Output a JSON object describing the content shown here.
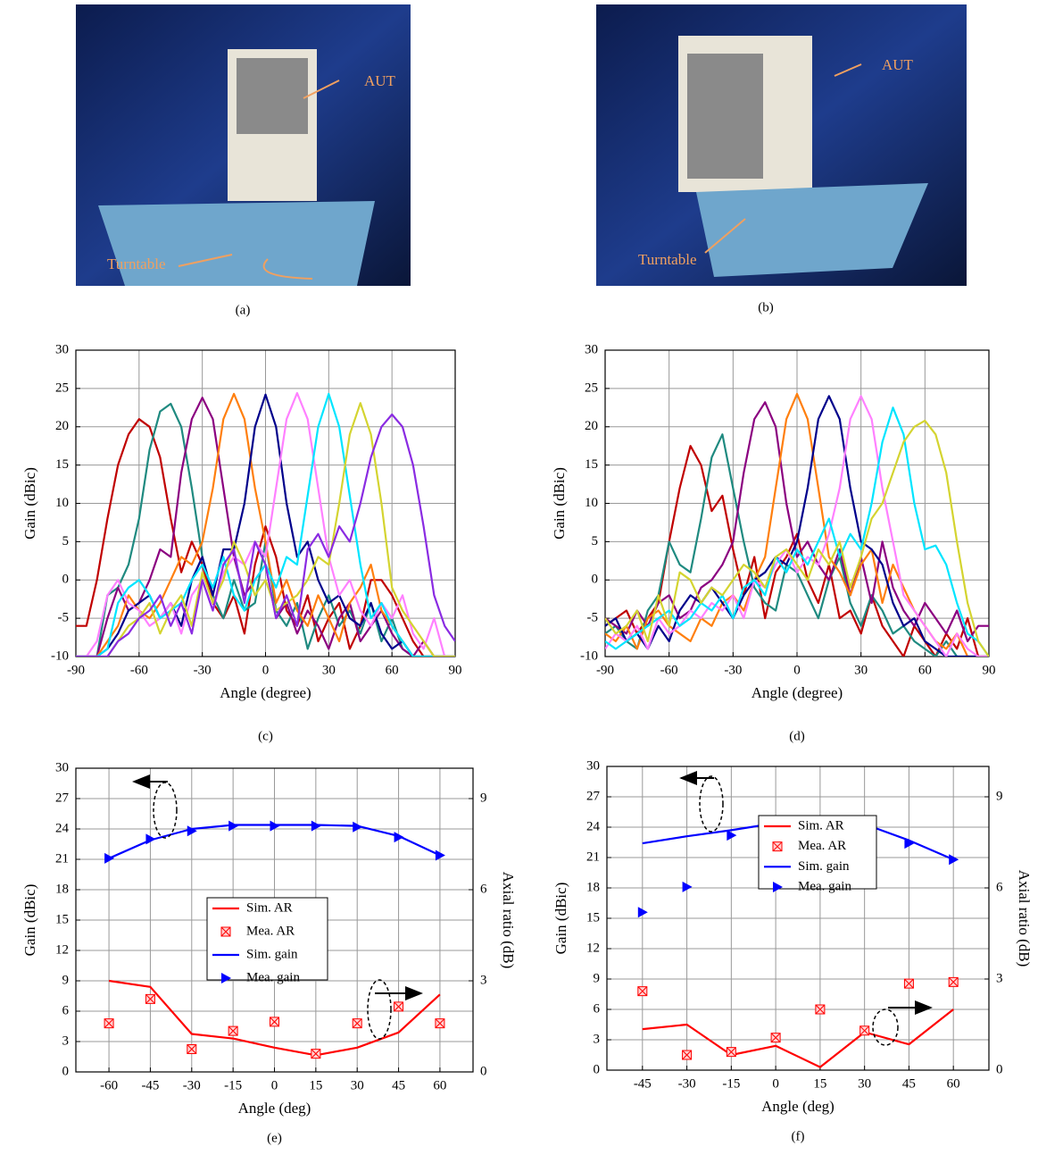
{
  "photos": [
    {
      "labels": [
        "AUT",
        "Turntable"
      ],
      "caption": "(a)"
    },
    {
      "labels": [
        "AUT",
        "Turntable"
      ],
      "caption": "(b)"
    }
  ],
  "chart_data": [
    {
      "type": "line",
      "caption": "(c)",
      "xlabel": "Angle (degree)",
      "ylabel": "Gain (dBic)",
      "xlim": [
        -90,
        90
      ],
      "xticks": [
        -90,
        -60,
        -30,
        0,
        30,
        60,
        90
      ],
      "ylim": [
        -10,
        30
      ],
      "yticks": [
        -10,
        -5,
        0,
        5,
        10,
        15,
        20,
        25,
        30
      ],
      "grid": true,
      "x": [
        -90,
        -85,
        -80,
        -75,
        -70,
        -65,
        -60,
        -55,
        -50,
        -45,
        -40,
        -35,
        -30,
        -25,
        -20,
        -15,
        -10,
        -5,
        0,
        5,
        10,
        15,
        20,
        25,
        30,
        35,
        40,
        45,
        50,
        55,
        60,
        65,
        70,
        75,
        80,
        85,
        90
      ],
      "series": [
        {
          "color": "#c00000",
          "values": [
            -6,
            -6,
            0,
            8,
            15,
            19,
            21,
            20,
            16,
            8,
            1,
            5,
            2,
            -3,
            -5,
            -2,
            -7,
            2,
            7,
            3,
            -4,
            -6,
            -2,
            -8,
            -5,
            -3,
            -9,
            -6,
            0,
            0,
            -2,
            -5,
            -8,
            -10,
            -10,
            -10,
            -10
          ]
        },
        {
          "color": "#1f8a80",
          "values": [
            -10,
            -10,
            -10,
            -2,
            -1,
            2,
            8,
            17,
            22,
            23,
            20,
            12,
            3,
            -2,
            -5,
            0,
            -4,
            -3,
            5,
            -4,
            -6,
            -3,
            -9,
            -5,
            -2,
            -6,
            -4,
            -7,
            -3,
            -8,
            -5,
            -9,
            -10,
            -10,
            -10,
            -10,
            -10
          ]
        },
        {
          "color": "#8b0080",
          "values": [
            -10,
            -10,
            -10,
            -5,
            -1,
            -4,
            -3,
            0,
            4,
            3,
            14,
            21,
            23.8,
            21,
            12,
            3,
            -2,
            0,
            2,
            -5,
            -3,
            -7,
            -4,
            -6,
            -9,
            -5,
            -3,
            -8,
            -6,
            -4,
            -7,
            -9,
            -10,
            -8,
            -10,
            -10,
            -10
          ]
        },
        {
          "color": "#ff7f0e",
          "values": [
            -10,
            -10,
            -10,
            -8,
            -6,
            -2,
            -4,
            -5,
            -3,
            0,
            3,
            2,
            5,
            12,
            21,
            24.3,
            21,
            12,
            5,
            -3,
            0,
            -4,
            -6,
            -2,
            -5,
            -8,
            -3,
            -1,
            2,
            -4,
            -6,
            -8,
            -10,
            -10,
            -10,
            -10,
            -10
          ]
        },
        {
          "color": "#00008b",
          "values": [
            -10,
            -10,
            -10,
            -9,
            -7,
            -4,
            -3,
            -2,
            -5,
            -3,
            -6,
            0,
            3,
            -2,
            4,
            4,
            10,
            20,
            24.2,
            20,
            10,
            3,
            5,
            0,
            -3,
            -2,
            -5,
            -6,
            -3,
            -7,
            -9,
            -8,
            -10,
            -10,
            -10,
            -10,
            -10
          ]
        },
        {
          "color": "#ff80ff",
          "values": [
            -10,
            -10,
            -8,
            -2,
            0,
            -3,
            -4,
            -6,
            -5,
            -3,
            -7,
            -2,
            0,
            -4,
            1,
            3,
            2,
            5,
            3,
            12,
            21,
            24.4,
            21,
            12,
            3,
            -2,
            0,
            -4,
            -6,
            -3,
            -5,
            -2,
            -7,
            -9,
            -5,
            -10,
            -10
          ]
        },
        {
          "color": "#00e5ff",
          "values": [
            -10,
            -10,
            -10,
            -9,
            -3,
            -1,
            0,
            -2,
            -5,
            -4,
            -3,
            0,
            2,
            -1,
            3,
            -2,
            -4,
            0,
            2,
            -1,
            3,
            2,
            11,
            20,
            24.3,
            20,
            11,
            2,
            -5,
            -3,
            -6,
            -8,
            -10,
            -10,
            -10,
            -10,
            -10
          ]
        },
        {
          "color": "#d4d430",
          "values": [
            -10,
            -10,
            -10,
            -10,
            -8,
            -6,
            -5,
            -3,
            -7,
            -4,
            -2,
            -6,
            1,
            -3,
            0,
            5,
            2,
            -2,
            0,
            -4,
            -3,
            -2,
            0,
            3,
            2,
            10,
            19,
            23.1,
            19,
            10,
            -1,
            -4,
            -6,
            -8,
            -10,
            -10,
            -10
          ]
        },
        {
          "color": "#8a2be2",
          "values": [
            -10,
            -10,
            -10,
            -10,
            -8,
            -7,
            -5,
            -4,
            -2,
            -6,
            -3,
            -7,
            0,
            -4,
            2,
            4,
            -3,
            5,
            2,
            -5,
            -2,
            -6,
            4,
            6,
            3,
            7,
            5,
            10,
            16,
            20,
            21.6,
            20,
            15,
            7,
            -2,
            -6,
            -8
          ]
        }
      ]
    },
    {
      "type": "line",
      "caption": "(d)",
      "xlabel": "Angle (degree)",
      "ylabel": "Gain (dBic)",
      "xlim": [
        -90,
        90
      ],
      "xticks": [
        -90,
        -60,
        -30,
        0,
        30,
        60,
        90
      ],
      "ylim": [
        -10,
        30
      ],
      "yticks": [
        -10,
        -5,
        0,
        5,
        10,
        15,
        20,
        25,
        30
      ],
      "grid": true,
      "x": [
        -90,
        -85,
        -80,
        -75,
        -70,
        -65,
        -60,
        -55,
        -50,
        -45,
        -40,
        -35,
        -30,
        -25,
        -20,
        -15,
        -10,
        -5,
        0,
        5,
        10,
        15,
        20,
        25,
        30,
        35,
        40,
        45,
        50,
        55,
        60,
        65,
        70,
        75,
        80,
        85,
        90
      ],
      "series": [
        {
          "color": "#c00000",
          "values": [
            -6,
            -5,
            -4,
            -7,
            -5,
            -3,
            5,
            12,
            17.5,
            15,
            9,
            11,
            4,
            -2,
            3,
            -5,
            1,
            3,
            6,
            0,
            -3,
            2,
            -5,
            -4,
            -7,
            -2,
            -6,
            -8,
            -10,
            -6,
            -8,
            -10,
            -7,
            -9,
            -5,
            -10,
            -10
          ]
        },
        {
          "color": "#1f8a80",
          "values": [
            -7,
            -6,
            -8,
            -9,
            -4,
            -2,
            5,
            2,
            1,
            8,
            16,
            19,
            12,
            5,
            -1,
            -3,
            -4,
            2,
            1,
            -2,
            -5,
            0,
            3,
            -3,
            -6,
            -2,
            -4,
            -7,
            -6,
            -8,
            -9,
            -10,
            -8,
            -10,
            -10,
            -10,
            -10
          ]
        },
        {
          "color": "#8b0080",
          "values": [
            -5,
            -6,
            -7,
            -4,
            -6,
            -3,
            -2,
            -5,
            -4,
            -1,
            0,
            2,
            5,
            14,
            21,
            23.2,
            20,
            10,
            3,
            5,
            2,
            0,
            4,
            -2,
            3,
            -3,
            5,
            -1,
            -4,
            -6,
            -3,
            -5,
            -7,
            -4,
            -8,
            -6,
            -6
          ]
        },
        {
          "color": "#ff7f0e",
          "values": [
            -7,
            -8,
            -6,
            -9,
            -5,
            -4,
            -6,
            -7,
            -8,
            -5,
            -6,
            -3,
            -2,
            -4,
            0,
            3,
            12,
            21,
            24.3,
            21,
            12,
            3,
            1,
            -2,
            2,
            4,
            -3,
            2,
            -1,
            -4,
            -6,
            -8,
            -9,
            -7,
            -10,
            -10,
            -10
          ]
        },
        {
          "color": "#00008b",
          "values": [
            -6,
            -5,
            -8,
            -7,
            -9,
            -6,
            -8,
            -4,
            -2,
            -3,
            -1,
            -3,
            -5,
            -2,
            0,
            1,
            3,
            2,
            5,
            12,
            21,
            24,
            21,
            12,
            5,
            4,
            2,
            -3,
            -6,
            -5,
            -8,
            -9,
            -10,
            -10,
            -10,
            -10,
            -10
          ]
        },
        {
          "color": "#ff80ff",
          "values": [
            -9,
            -7,
            -8,
            -6,
            -9,
            -5,
            -7,
            -6,
            -4,
            -5,
            -3,
            -4,
            -2,
            -5,
            0,
            -1,
            2,
            4,
            1,
            3,
            2,
            6,
            12,
            21,
            24,
            21,
            12,
            5,
            -2,
            -4,
            -6,
            -8,
            -10,
            -7,
            -9,
            -10,
            -10
          ]
        },
        {
          "color": "#00e5ff",
          "values": [
            -8,
            -9,
            -8,
            -7,
            -6,
            -5,
            -4,
            -6,
            -5,
            -3,
            -4,
            -2,
            -5,
            -1,
            0,
            -2,
            3,
            1,
            4,
            2,
            5,
            8,
            3,
            6,
            4,
            10,
            18,
            22.5,
            19,
            10,
            4,
            4.5,
            2,
            -3,
            -7,
            -8,
            -10
          ]
        },
        {
          "color": "#d4d430",
          "values": [
            -5,
            -7,
            -6,
            -4,
            -8,
            -2,
            -6,
            1,
            0,
            -3,
            -1,
            -2,
            0,
            2,
            1,
            -1,
            3,
            4,
            2,
            0,
            4,
            2,
            5,
            -1,
            3,
            8,
            10,
            14,
            18,
            20,
            20.8,
            19,
            14,
            5,
            -3,
            -8,
            -10
          ]
        }
      ]
    },
    {
      "type": "combo",
      "caption": "(e)",
      "xlabel": "Angle (deg)",
      "ylabel": "Gain (dBic)",
      "y2label": "Axial ratio (dB)",
      "xlim": [
        -72,
        72
      ],
      "xticks": [
        -60,
        -45,
        -30,
        -15,
        0,
        15,
        30,
        45,
        60
      ],
      "ylim": [
        0,
        30
      ],
      "yticks": [
        0,
        3,
        6,
        9,
        12,
        15,
        18,
        21,
        24,
        27,
        30
      ],
      "y2lim": [
        0,
        10
      ],
      "y2ticks": [
        0,
        3,
        6,
        9
      ],
      "grid": true,
      "x": [
        -60,
        -45,
        -30,
        -15,
        0,
        15,
        30,
        45,
        60
      ],
      "series": [
        {
          "name": "Sim. AR",
          "type": "line",
          "axis": "y2",
          "color": "#ff0000",
          "values": [
            3.0,
            2.8,
            1.25,
            1.1,
            0.8,
            0.55,
            0.8,
            1.3,
            2.55
          ]
        },
        {
          "name": "Mea. AR",
          "type": "scatter",
          "marker": "square-x",
          "axis": "y2",
          "color": "#ff0000",
          "values": [
            1.6,
            2.4,
            0.75,
            1.35,
            1.65,
            0.6,
            1.6,
            2.15,
            1.6
          ]
        },
        {
          "name": "Sim. gain",
          "type": "line",
          "color": "#0000ff",
          "values": [
            21.1,
            22.9,
            24.0,
            24.4,
            24.4,
            24.4,
            24.3,
            23.3,
            21.4
          ]
        },
        {
          "name": "Mea. gain",
          "type": "scatter",
          "marker": "triangle",
          "color": "#0000ff",
          "values": [
            21.1,
            23.0,
            23.8,
            24.3,
            24.3,
            24.3,
            24.2,
            23.2,
            21.4
          ]
        }
      ]
    },
    {
      "type": "combo",
      "caption": "(f)",
      "xlabel": "Angle (deg)",
      "ylabel": "Gain (dBic)",
      "y2label": "Axial ratio (dB)",
      "xlim": [
        -57,
        72
      ],
      "xticks": [
        -45,
        -30,
        -15,
        0,
        15,
        30,
        45,
        60
      ],
      "ylim": [
        0,
        30
      ],
      "yticks": [
        0,
        3,
        6,
        9,
        12,
        15,
        18,
        21,
        24,
        27,
        30
      ],
      "y2lim": [
        0,
        10
      ],
      "y2ticks": [
        0,
        3,
        6,
        9
      ],
      "grid": true,
      "x": [
        -45,
        -30,
        -15,
        0,
        15,
        30,
        45,
        60
      ],
      "series": [
        {
          "name": "Sim. AR",
          "type": "line",
          "axis": "y2",
          "color": "#ff0000",
          "values": [
            1.35,
            1.5,
            0.5,
            0.8,
            0.1,
            1.25,
            0.85,
            2.0
          ]
        },
        {
          "name": "Mea. AR",
          "type": "scatter",
          "marker": "square-x",
          "axis": "y2",
          "color": "#ff0000",
          "values": [
            2.6,
            0.5,
            0.6,
            1.07,
            2.0,
            1.3,
            2.85,
            2.9
          ]
        },
        {
          "name": "Sim. gain",
          "type": "line",
          "color": "#0000ff",
          "values": [
            22.4,
            23.1,
            23.7,
            24.4,
            24.4,
            24.3,
            22.7,
            20.8
          ]
        },
        {
          "name": "Mea. gain",
          "type": "scatter",
          "marker": "triangle",
          "color": "#0000ff",
          "values": [
            15.6,
            18.1,
            23.2,
            24.3,
            23.9,
            24.0,
            22.4,
            20.8
          ]
        }
      ]
    }
  ]
}
